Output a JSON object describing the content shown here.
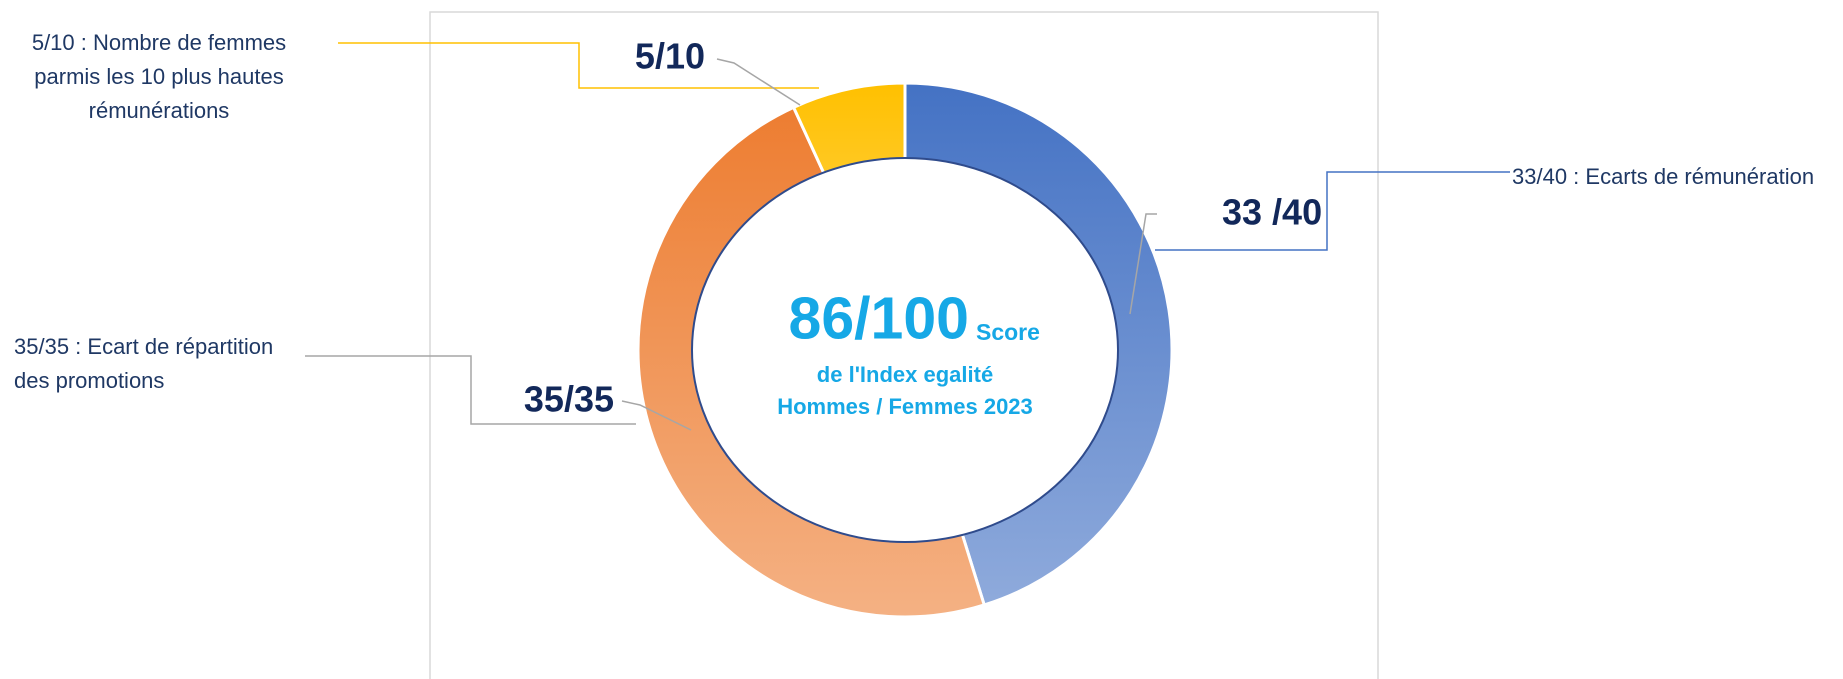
{
  "chart_data": {
    "type": "donut",
    "categories": [
      "33/40 : Ecarts de rémunération",
      "35/35 : Ecart de répartition des promotions",
      "5/10 : Nombre de femmes parmis les 10 plus hautes rémunérations"
    ],
    "values": [
      33,
      35,
      5
    ],
    "value_labels": [
      "33 /40",
      "35/35",
      "5/10"
    ],
    "colors": [
      "#4472c4",
      "#ed7d31",
      "#ffc000"
    ],
    "center_title": "86/100",
    "center_subtitle": "Score",
    "center_lines": [
      "de l'Index egalité",
      "Hommes / Femmes 2023"
    ]
  }
}
